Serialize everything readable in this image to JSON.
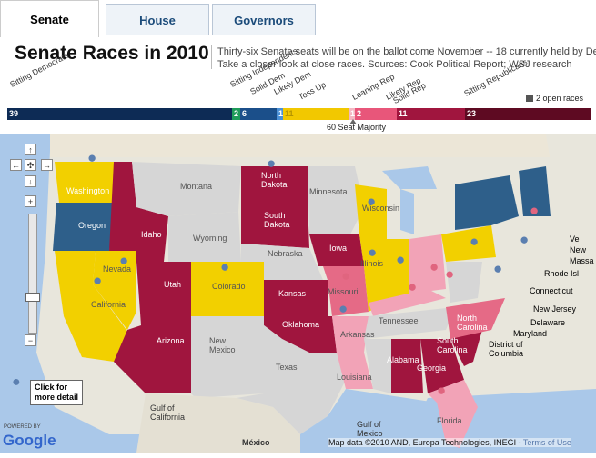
{
  "tabs": [
    {
      "label": "Senate",
      "active": true
    },
    {
      "label": "House",
      "active": false
    },
    {
      "label": "Governors",
      "active": false
    }
  ],
  "header": {
    "title": "Senate Races in 2010",
    "desc1": "Thirty-six Senate seats will be on the ballot come November -- 18 currently held by Dem",
    "desc2": "Take a closer look at close races. Sources: Cook Political Report; WSJ research"
  },
  "categories": [
    {
      "label": "Sitting Democrats"
    },
    {
      "label": "Sitting Independents"
    },
    {
      "label": "Solid Dem"
    },
    {
      "label": "Likely Dem"
    },
    {
      "label": "Toss Up"
    },
    {
      "label": "Leaning Rep"
    },
    {
      "label": "Likely Rep"
    },
    {
      "label": "Solid Rep"
    },
    {
      "label": "Sitting Republicans"
    }
  ],
  "seat_bar": [
    {
      "category": "Sitting Democrats",
      "value": "39",
      "color": "#0d2b55"
    },
    {
      "category": "Sitting Independents",
      "value": "2",
      "color": "#1f9c5a"
    },
    {
      "category": "Solid Dem",
      "value": "6",
      "color": "#1b4f8a"
    },
    {
      "category": "Likely Dem",
      "value": "1",
      "color": "#4a90d6"
    },
    {
      "category": "Toss Up",
      "value": "11",
      "color": "#f2c800"
    },
    {
      "category": "Leaning Rep",
      "value": "1",
      "color": "#f4b7c3"
    },
    {
      "category": "Likely Rep",
      "value": "2",
      "color": "#e8567a"
    },
    {
      "category": "Solid Rep",
      "value": "11",
      "color": "#a0153e"
    },
    {
      "category": "Sitting Republicans",
      "value": "23",
      "color": "#5e0a22"
    }
  ],
  "majority_label": "60 Seat Majority",
  "open_races": "2 open races",
  "map": {
    "labels": {
      "washington": "Washington",
      "oregon": "Oregon",
      "california": "California",
      "nevada": "Nevada",
      "idaho": "Idaho",
      "utah": "Utah",
      "arizona": "Arizona",
      "montana": "Montana",
      "wyoming": "Wyoming",
      "colorado": "Colorado",
      "new_mexico": "New\nMexico",
      "north_dakota": "North\nDakota",
      "south_dakota": "South\nDakota",
      "nebraska": "Nebraska",
      "kansas": "Kansas",
      "oklahoma": "Oklahoma",
      "texas": "Texas",
      "minnesota": "Minnesota",
      "iowa": "Iowa",
      "missouri": "Missouri",
      "arkansas": "Arkansas",
      "louisiana": "Louisiana",
      "wisconsin": "Wisconsin",
      "illinois": "Illinois",
      "tennessee": "Tennessee",
      "alabama": "Alabama",
      "georgia": "Georgia",
      "florida": "Florida",
      "north_carolina": "North\nCarolina",
      "south_carolina": "South\nCarolina",
      "mexico": "México",
      "gulf_california": "Gulf of\nCalifornia",
      "gulf_mexico": "Gulf of\nMexico"
    },
    "callouts": [
      "Ve",
      "New",
      "Massa",
      "Rhode Isl",
      "Connecticut",
      "New Jersey",
      "Delaware",
      "Maryland",
      "District of\nColumbia"
    ],
    "click_label": "Click for\nmore detail",
    "powered_by": "POWERED BY",
    "google": "Google",
    "credit": "Map data ©2010  AND, Europa Technologies, INEGI - ",
    "terms": "Terms of Use"
  },
  "colors": {
    "solid_dem": "#2e5f8a",
    "toss_up": "#f2d000",
    "leaning_rep": "#f2a3b7",
    "likely_rep": "#e56a86",
    "solid_rep": "#a0153e",
    "no_race": "#d6d6d6",
    "water": "#aac8e9",
    "land": "#e8e6dc"
  }
}
